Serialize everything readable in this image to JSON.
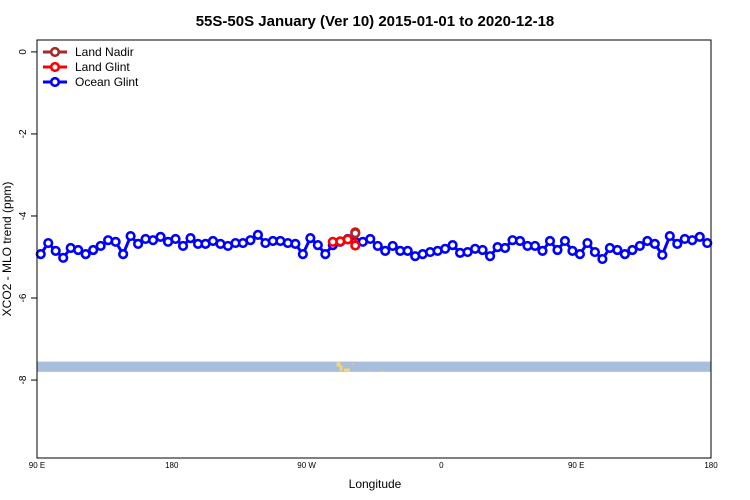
{
  "chart_data": {
    "type": "line",
    "title": "55S-50S January (Ver 10)   2015-01-01 to 2020-12-18",
    "xlabel": "Longitude",
    "ylabel": "XCO2 - MLO trend (ppm)",
    "xlim": [
      90,
      540
    ],
    "ylim": [
      -9.9,
      0.29
    ],
    "yticks": [
      0,
      -2,
      -4,
      -6,
      -8
    ],
    "ytick_labels": [
      "0",
      "-2",
      "-4",
      "-6",
      "-8"
    ],
    "xticks": [
      90,
      180,
      270,
      360,
      450,
      540
    ],
    "xtick_labels": [
      "90 E",
      "180",
      "90 W",
      "0",
      "90 E",
      "180"
    ],
    "grid": false,
    "legend_position": "top-left",
    "series": [
      {
        "name": "Land Nadir",
        "color": "#a52a2a",
        "x": [
          302.5
        ],
        "values": [
          -4.42
        ]
      },
      {
        "name": "Land Glint",
        "color": "#ff0000",
        "x": [
          287.5,
          292.5,
          297.5,
          302.5,
          302.5
        ],
        "values": [
          -4.63,
          -4.62,
          -4.57,
          -4.4,
          -4.72
        ]
      },
      {
        "name": "Ocean Glint",
        "color": "#0000ff",
        "x_start": 92.5,
        "x_step": 5,
        "values": [
          -4.93,
          -4.66,
          -4.85,
          -5.02,
          -4.78,
          -4.83,
          -4.93,
          -4.83,
          -4.73,
          -4.59,
          -4.63,
          -4.93,
          -4.49,
          -4.68,
          -4.56,
          -4.59,
          -4.51,
          -4.63,
          -4.56,
          -4.73,
          -4.54,
          -4.68,
          -4.68,
          -4.61,
          -4.68,
          -4.73,
          -4.66,
          -4.66,
          -4.59,
          -4.46,
          -4.66,
          -4.61,
          -4.61,
          -4.66,
          -4.68,
          -4.93,
          -4.54,
          -4.71,
          -4.93,
          -4.71,
          -4.63,
          -4.56,
          -4.63,
          -4.63,
          -4.56,
          -4.73,
          -4.85,
          -4.73,
          -4.85,
          -4.85,
          -4.98,
          -4.93,
          -4.88,
          -4.85,
          -4.8,
          -4.71,
          -4.9,
          -4.88,
          -4.8,
          -4.83,
          -4.98,
          -4.76,
          -4.78,
          -4.59,
          -4.61,
          -4.73,
          -4.73,
          -4.85,
          -4.61,
          -4.83,
          -4.61,
          -4.85,
          -4.93,
          -4.66,
          -4.88,
          -5.05,
          -4.78,
          -4.83,
          -4.93,
          -4.83,
          -4.73,
          -4.61,
          -4.68,
          -4.95,
          -4.49,
          -4.68,
          -4.56,
          -4.59,
          -4.51,
          -4.66
        ]
      }
    ],
    "map_strip": {
      "ocean_color": "#a7bedc",
      "land_color": "#f9d56e",
      "y_range": [
        -7.55,
        -7.8
      ]
    }
  }
}
